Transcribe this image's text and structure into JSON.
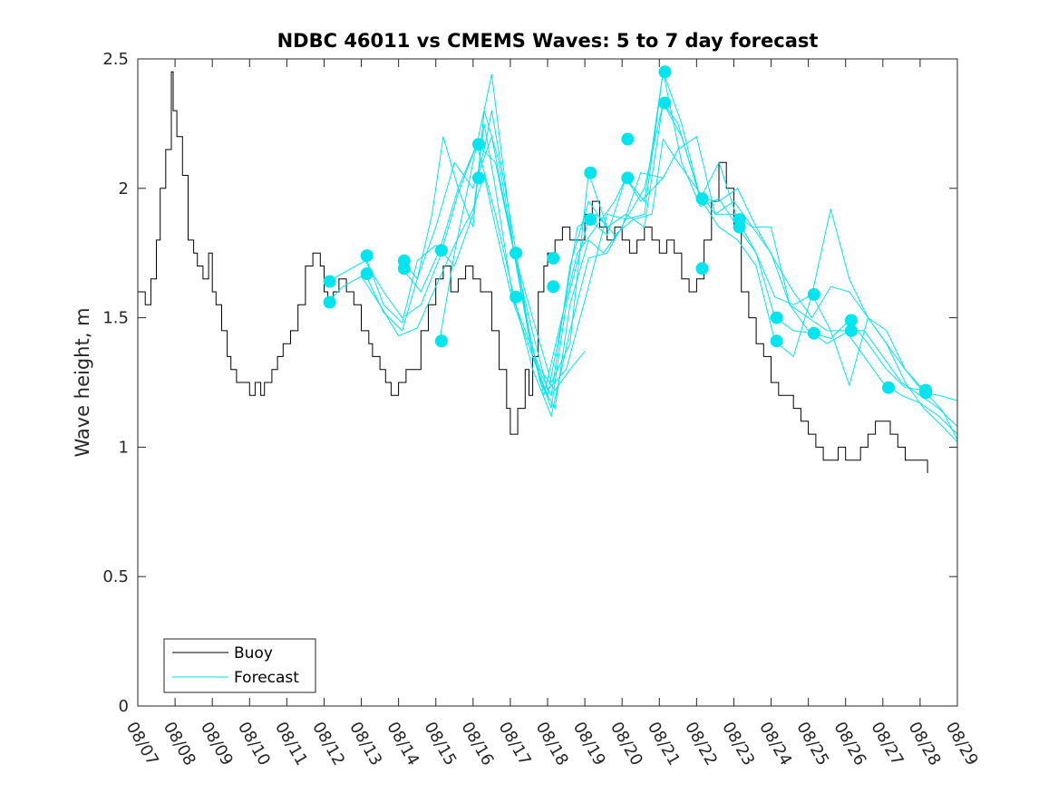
{
  "chart_data": {
    "type": "line",
    "title": "NDBC 46011 vs CMEMS Waves: 5 to 7 day forecast",
    "xlabel": "",
    "ylabel": "Wave height, m",
    "xlim": [
      0,
      22
    ],
    "ylim": [
      0,
      2.5
    ],
    "x_ticks": [
      0,
      1,
      2,
      3,
      4,
      5,
      6,
      7,
      8,
      9,
      10,
      11,
      12,
      13,
      14,
      15,
      16,
      17,
      18,
      19,
      20,
      21,
      22
    ],
    "x_tick_labels": [
      "08/07",
      "08/08",
      "08/09",
      "08/10",
      "08/11",
      "08/12",
      "08/13",
      "08/14",
      "08/15",
      "08/16",
      "08/17",
      "08/18",
      "08/19",
      "08/20",
      "08/21",
      "08/22",
      "08/23",
      "08/24",
      "08/25",
      "08/26",
      "08/27",
      "08/28",
      "08/29"
    ],
    "y_ticks": [
      0,
      0.5,
      1,
      1.5,
      2,
      2.5
    ],
    "y_tick_labels": [
      "0",
      "0.5",
      "1",
      "1.5",
      "2",
      "2.5"
    ],
    "legend": {
      "position": "bottom-left",
      "entries": [
        {
          "label": "Buoy",
          "color": "#000000"
        },
        {
          "label": "Forecast",
          "color": "#00e5ee"
        }
      ]
    },
    "colors": {
      "buoy": "#000000",
      "forecast": "#00e5ee",
      "axes": "#262626"
    },
    "series": [
      {
        "name": "Buoy",
        "x": [
          0,
          0.2,
          0.35,
          0.5,
          0.6,
          0.75,
          0.9,
          0.95,
          1.05,
          1.2,
          1.35,
          1.5,
          1.6,
          1.75,
          1.9,
          2.0,
          2.1,
          2.25,
          2.4,
          2.5,
          2.65,
          2.8,
          3.0,
          3.15,
          3.3,
          3.4,
          3.6,
          3.75,
          3.9,
          4.1,
          4.3,
          4.5,
          4.7,
          4.9,
          5.0,
          5.1,
          5.25,
          5.4,
          5.6,
          5.8,
          6.0,
          6.2,
          6.3,
          6.5,
          6.65,
          6.8,
          7.0,
          7.2,
          7.4,
          7.6,
          7.8,
          8.0,
          8.2,
          8.4,
          8.6,
          8.8,
          9.0,
          9.2,
          9.5,
          9.7,
          9.9,
          10.0,
          10.2,
          10.4,
          10.5,
          10.6,
          10.75,
          10.9,
          11.0,
          11.2,
          11.4,
          11.6,
          11.8,
          12.0,
          12.2,
          12.4,
          12.6,
          12.8,
          13.0,
          13.2,
          13.4,
          13.6,
          13.8,
          14.0,
          14.2,
          14.4,
          14.6,
          14.8,
          15.0,
          15.2,
          15.4,
          15.6,
          15.8,
          16.0,
          16.2,
          16.4,
          16.6,
          16.8,
          17.0,
          17.2,
          17.4,
          17.6,
          17.8,
          18.0,
          18.2,
          18.4,
          18.6,
          18.8,
          19.0,
          19.2,
          19.4,
          19.6,
          19.8,
          20.0,
          20.2,
          20.4,
          20.6,
          20.8,
          21.0,
          21.2
        ],
        "values": [
          1.6,
          1.55,
          1.65,
          1.8,
          2.0,
          2.15,
          2.45,
          2.3,
          2.2,
          2.05,
          1.8,
          1.75,
          1.7,
          1.65,
          1.75,
          1.6,
          1.55,
          1.45,
          1.35,
          1.3,
          1.25,
          1.25,
          1.2,
          1.25,
          1.2,
          1.25,
          1.3,
          1.35,
          1.4,
          1.45,
          1.55,
          1.7,
          1.75,
          1.7,
          1.6,
          1.55,
          1.6,
          1.65,
          1.6,
          1.55,
          1.45,
          1.4,
          1.35,
          1.3,
          1.25,
          1.2,
          1.25,
          1.3,
          1.3,
          1.45,
          1.55,
          1.65,
          1.7,
          1.6,
          1.65,
          1.7,
          1.65,
          1.6,
          1.45,
          1.3,
          1.15,
          1.05,
          1.15,
          1.3,
          1.2,
          1.35,
          1.6,
          1.7,
          1.75,
          1.8,
          1.85,
          1.8,
          1.8,
          1.9,
          1.95,
          1.85,
          1.8,
          1.85,
          1.8,
          1.75,
          1.8,
          1.85,
          1.8,
          1.75,
          1.8,
          1.75,
          1.65,
          1.6,
          1.65,
          1.8,
          1.95,
          2.1,
          2.0,
          1.85,
          1.6,
          1.5,
          1.4,
          1.35,
          1.25,
          1.2,
          1.2,
          1.15,
          1.1,
          1.05,
          1.0,
          0.95,
          0.95,
          1.0,
          0.95,
          0.95,
          1.0,
          1.05,
          1.1,
          1.1,
          1.05,
          1.0,
          0.95,
          0.95,
          0.95,
          0.9
        ]
      },
      {
        "name": "Forecast run 1",
        "x": [
          5.1,
          5.5,
          6.0,
          6.5,
          7.0,
          7.5,
          8.0,
          8.5,
          9.0,
          9.3,
          9.6,
          10.0,
          10.4,
          10.8,
          11.2,
          11.6,
          12.0
        ],
        "values": [
          1.56,
          1.62,
          1.66,
          1.55,
          1.43,
          1.46,
          1.62,
          1.78,
          1.92,
          2.05,
          1.85,
          1.6,
          1.45,
          1.3,
          1.22,
          1.3,
          1.37
        ]
      },
      {
        "name": "Forecast run 2",
        "x": [
          5.1,
          5.6,
          6.1,
          6.6,
          7.1,
          7.6,
          8.1,
          8.6,
          9.1,
          9.6,
          10.1,
          10.6,
          11.1,
          11.6,
          12.1,
          12.6,
          13.1
        ],
        "values": [
          1.64,
          1.68,
          1.72,
          1.6,
          1.5,
          1.55,
          1.73,
          1.98,
          2.17,
          2.1,
          1.75,
          1.35,
          1.2,
          1.7,
          1.95,
          1.85,
          1.9
        ]
      },
      {
        "name": "Forecast run 3",
        "x": [
          6.1,
          6.6,
          7.1,
          7.5,
          7.9,
          8.2,
          8.6,
          9.0,
          9.3,
          9.7,
          10.1,
          10.5,
          10.9,
          11.3,
          11.8,
          12.3,
          12.8,
          13.1,
          13.5,
          14.1
        ],
        "values": [
          1.67,
          1.52,
          1.45,
          1.65,
          1.9,
          2.2,
          2.0,
          1.85,
          2.3,
          2.1,
          1.75,
          1.45,
          1.2,
          1.45,
          1.75,
          1.85,
          1.95,
          2.04,
          1.95,
          2.04
        ]
      },
      {
        "name": "Forecast run 4",
        "x": [
          6.1,
          6.6,
          7.1,
          7.5,
          8.0,
          8.5,
          9.0,
          9.3,
          9.6,
          10.1,
          10.6,
          11.0,
          11.4,
          11.8,
          12.3,
          12.8,
          13.3,
          13.8,
          14.1,
          14.5,
          15.0,
          15.5,
          16.0,
          16.5,
          17.0,
          17.5,
          18.0,
          18.5,
          19.0,
          19.5,
          20.0,
          20.5,
          21.0,
          21.5,
          22.0
        ],
        "values": [
          1.74,
          1.55,
          1.48,
          1.72,
          1.78,
          1.7,
          1.9,
          2.25,
          2.0,
          1.55,
          1.35,
          1.2,
          1.5,
          1.85,
          1.9,
          1.82,
          1.88,
          1.9,
          2.19,
          2.1,
          2.0,
          1.9,
          1.95,
          1.85,
          1.75,
          1.55,
          1.5,
          1.45,
          1.45,
          1.35,
          1.25,
          1.2,
          1.17,
          1.12,
          1.05
        ]
      },
      {
        "name": "Forecast run 5",
        "x": [
          7.1,
          7.5,
          8.0,
          8.5,
          9.0,
          9.3,
          9.5,
          9.8,
          10.1,
          10.5,
          10.8,
          11.2,
          11.6,
          12.1,
          12.5,
          13.0,
          13.5,
          14.1,
          14.5,
          15.0,
          15.5,
          16.0,
          16.5,
          17.0,
          17.5,
          18.0,
          18.5,
          19.1,
          19.5,
          20.0,
          20.5,
          21.0,
          21.5,
          22.0
        ],
        "values": [
          1.72,
          1.65,
          1.85,
          2.1,
          2.0,
          2.15,
          2.3,
          2.05,
          1.8,
          1.45,
          1.25,
          1.15,
          1.55,
          1.8,
          1.75,
          1.85,
          2.06,
          2.04,
          2.15,
          2.2,
          1.9,
          1.9,
          1.85,
          1.85,
          1.55,
          1.45,
          1.4,
          1.45,
          1.45,
          1.35,
          1.25,
          1.2,
          1.15,
          1.08
        ]
      },
      {
        "name": "Forecast run 6",
        "x": [
          7.1,
          7.6,
          8.1,
          8.6,
          9.1,
          9.6,
          10.1,
          10.6,
          11.1,
          11.6,
          12.1,
          12.6,
          13.1,
          13.6,
          14.1,
          14.6,
          15.1,
          15.6,
          16.1,
          16.6,
          17.1,
          17.6,
          18.1,
          18.6,
          19.1,
          19.6,
          20.1,
          20.6,
          21.1,
          21.6,
          22.0
        ],
        "values": [
          1.69,
          1.6,
          1.76,
          2.0,
          2.17,
          1.9,
          1.58,
          1.3,
          1.12,
          1.45,
          1.73,
          1.75,
          1.88,
          1.9,
          2.45,
          2.25,
          1.96,
          1.95,
          2.0,
          1.85,
          1.72,
          1.6,
          1.5,
          1.62,
          1.6,
          1.5,
          1.4,
          1.25,
          1.15,
          1.08,
          1.02
        ]
      },
      {
        "name": "Forecast run 7",
        "x": [
          8.1,
          8.5,
          9.0,
          9.5,
          10.1,
          10.5,
          11.0,
          11.5,
          12.1,
          12.6,
          13.1,
          13.6,
          14.1,
          14.5,
          15.1,
          15.6,
          16.1,
          16.6,
          17.1,
          17.6,
          18.1,
          18.6,
          19.1,
          19.6,
          20.1,
          20.6,
          21.1,
          21.5,
          22.0
        ],
        "values": [
          1.41,
          1.75,
          2.1,
          2.44,
          1.75,
          1.5,
          1.22,
          1.3,
          1.62,
          1.9,
          1.88,
          2.0,
          2.33,
          2.25,
          1.96,
          2.1,
          1.88,
          1.75,
          1.58,
          1.55,
          1.59,
          1.92,
          1.65,
          1.5,
          1.45,
          1.3,
          1.21,
          1.2,
          1.18
        ]
      },
      {
        "name": "Forecast run 8",
        "x": [
          9.1,
          9.5,
          10.1,
          10.6,
          11.1,
          11.5,
          12.1,
          12.6,
          13.1,
          13.6,
          14.1,
          14.6,
          15.1,
          15.6,
          16.1,
          16.6,
          17.1,
          17.6,
          18.1,
          18.6,
          19.1,
          19.6,
          20.1,
          20.6,
          21.1,
          21.6,
          22.0
        ],
        "values": [
          2.04,
          2.2,
          1.75,
          1.35,
          1.15,
          1.55,
          1.88,
          1.82,
          2.04,
          1.95,
          2.45,
          2.1,
          1.93,
          1.96,
          1.85,
          1.75,
          1.5,
          1.45,
          1.44,
          1.42,
          1.49,
          1.4,
          1.3,
          1.23,
          1.22,
          1.14,
          1.03
        ]
      },
      {
        "name": "Forecast run 9",
        "x": [
          10.1,
          10.6,
          11.1,
          11.6,
          12.1,
          12.6,
          13.1,
          13.6,
          14.1,
          14.6,
          15.1,
          15.6,
          16.1,
          16.6,
          17.1,
          17.6,
          18.1,
          18.6,
          19.1,
          19.6,
          20.1,
          20.6,
          21.1
        ],
        "values": [
          1.75,
          1.5,
          1.25,
          1.4,
          2.06,
          1.85,
          1.9,
          1.85,
          2.33,
          2.2,
          1.96,
          1.85,
          1.8,
          1.7,
          1.41,
          1.35,
          1.59,
          1.45,
          1.24,
          1.5,
          1.4,
          1.3,
          1.22
        ]
      }
    ],
    "forecast_markers": [
      {
        "x": 5.15,
        "y": 1.64
      },
      {
        "x": 5.15,
        "y": 1.56
      },
      {
        "x": 6.15,
        "y": 1.74
      },
      {
        "x": 6.15,
        "y": 1.67
      },
      {
        "x": 7.15,
        "y": 1.72
      },
      {
        "x": 7.15,
        "y": 1.69
      },
      {
        "x": 8.15,
        "y": 1.76
      },
      {
        "x": 8.15,
        "y": 1.41
      },
      {
        "x": 9.15,
        "y": 2.17
      },
      {
        "x": 9.15,
        "y": 2.04
      },
      {
        "x": 10.15,
        "y": 1.75
      },
      {
        "x": 10.15,
        "y": 1.58
      },
      {
        "x": 11.15,
        "y": 1.73
      },
      {
        "x": 11.15,
        "y": 1.62
      },
      {
        "x": 12.15,
        "y": 2.06
      },
      {
        "x": 12.15,
        "y": 1.88
      },
      {
        "x": 13.15,
        "y": 2.19
      },
      {
        "x": 13.15,
        "y": 2.04
      },
      {
        "x": 14.15,
        "y": 2.45
      },
      {
        "x": 14.15,
        "y": 2.33
      },
      {
        "x": 15.15,
        "y": 1.96
      },
      {
        "x": 15.15,
        "y": 1.69
      },
      {
        "x": 16.15,
        "y": 1.88
      },
      {
        "x": 16.15,
        "y": 1.85
      },
      {
        "x": 17.15,
        "y": 1.5
      },
      {
        "x": 17.15,
        "y": 1.41
      },
      {
        "x": 18.15,
        "y": 1.59
      },
      {
        "x": 18.15,
        "y": 1.44
      },
      {
        "x": 19.15,
        "y": 1.49
      },
      {
        "x": 19.15,
        "y": 1.45
      },
      {
        "x": 20.15,
        "y": 1.23
      },
      {
        "x": 21.15,
        "y": 1.22
      },
      {
        "x": 21.15,
        "y": 1.21
      }
    ]
  }
}
